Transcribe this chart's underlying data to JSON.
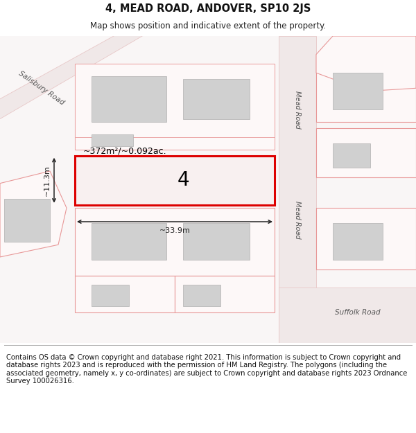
{
  "title": "4, MEAD ROAD, ANDOVER, SP10 2JS",
  "subtitle": "Map shows position and indicative extent of the property.",
  "footer": "Contains OS data © Crown copyright and database right 2021. This information is subject to Crown copyright and database rights 2023 and is reproduced with the permission of HM Land Registry. The polygons (including the associated geometry, namely x, y co-ordinates) are subject to Crown copyright and database rights 2023 Ordnance Survey 100026316.",
  "background_color": "#ffffff",
  "map_background": "#f8f4f4",
  "road_fill": "#f0e8e8",
  "road_edge": "#e8c8c8",
  "plot_fill": "#fdf8f8",
  "plot_edge": "#e89898",
  "building_fill": "#d0d0d0",
  "building_edge": "#b0b0b0",
  "highlight_fill": "#f8f0f0",
  "highlight_edge": "#dd0000",
  "dim_color": "#222222",
  "road_label_color": "#555555",
  "property_number": "4",
  "area_text": "~372m²/~0.092ac.",
  "width_label": "~33.9m",
  "height_label": "~11.3m",
  "title_fontsize": 10.5,
  "subtitle_fontsize": 8.5,
  "footer_fontsize": 7.2
}
